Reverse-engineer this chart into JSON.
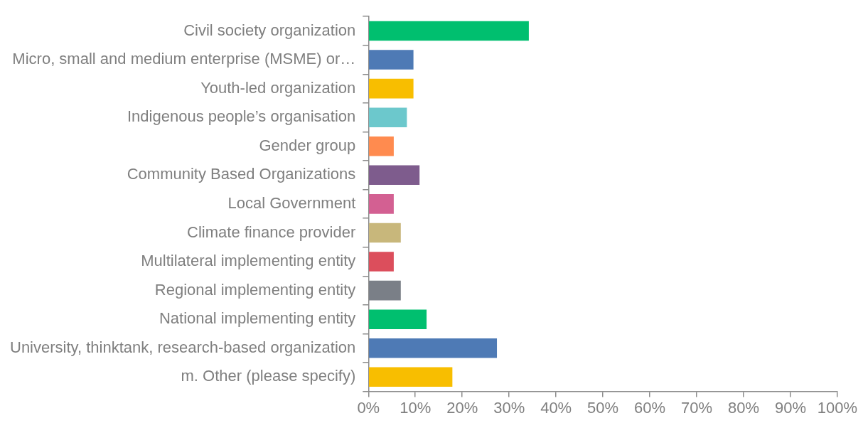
{
  "chart_data": {
    "type": "bar",
    "orientation": "horizontal",
    "categories": [
      "Civil society organization",
      "Micro, small and medium enterprise (MSME) or…",
      "Youth-led organization",
      "Indigenous people’s organisation",
      "Gender group",
      "Community Based Organizations",
      "Local Government",
      "Climate finance provider",
      "Multilateral implementing entity",
      "Regional implementing entity",
      "National implementing entity",
      "University, thinktank, research-based organization",
      "m. Other (please specify)"
    ],
    "values": [
      34.2,
      9.6,
      9.6,
      8.2,
      5.4,
      10.9,
      5.4,
      6.9,
      5.4,
      6.9,
      12.4,
      27.4,
      17.9
    ],
    "colors": [
      "#00bf6f",
      "#4e7ab5",
      "#f8be00",
      "#6cc8cc",
      "#ff8b4f",
      "#7e5c8d",
      "#d36092",
      "#c8b77b",
      "#dc4e5c",
      "#7a7f87",
      "#00bf6f",
      "#4e7ab5",
      "#f8be00"
    ],
    "xlim": [
      0,
      100
    ],
    "xticks": [
      {
        "value": 0,
        "label": "0%"
      },
      {
        "value": 10,
        "label": "10%"
      },
      {
        "value": 20,
        "label": "20%"
      },
      {
        "value": 30,
        "label": "30%"
      },
      {
        "value": 40,
        "label": "40%"
      },
      {
        "value": 50,
        "label": "50%"
      },
      {
        "value": 60,
        "label": "60%"
      },
      {
        "value": 70,
        "label": "70%"
      },
      {
        "value": 80,
        "label": "80%"
      },
      {
        "value": 90,
        "label": "90%"
      },
      {
        "value": 100,
        "label": "100%"
      }
    ],
    "grid": false,
    "legend": false
  }
}
